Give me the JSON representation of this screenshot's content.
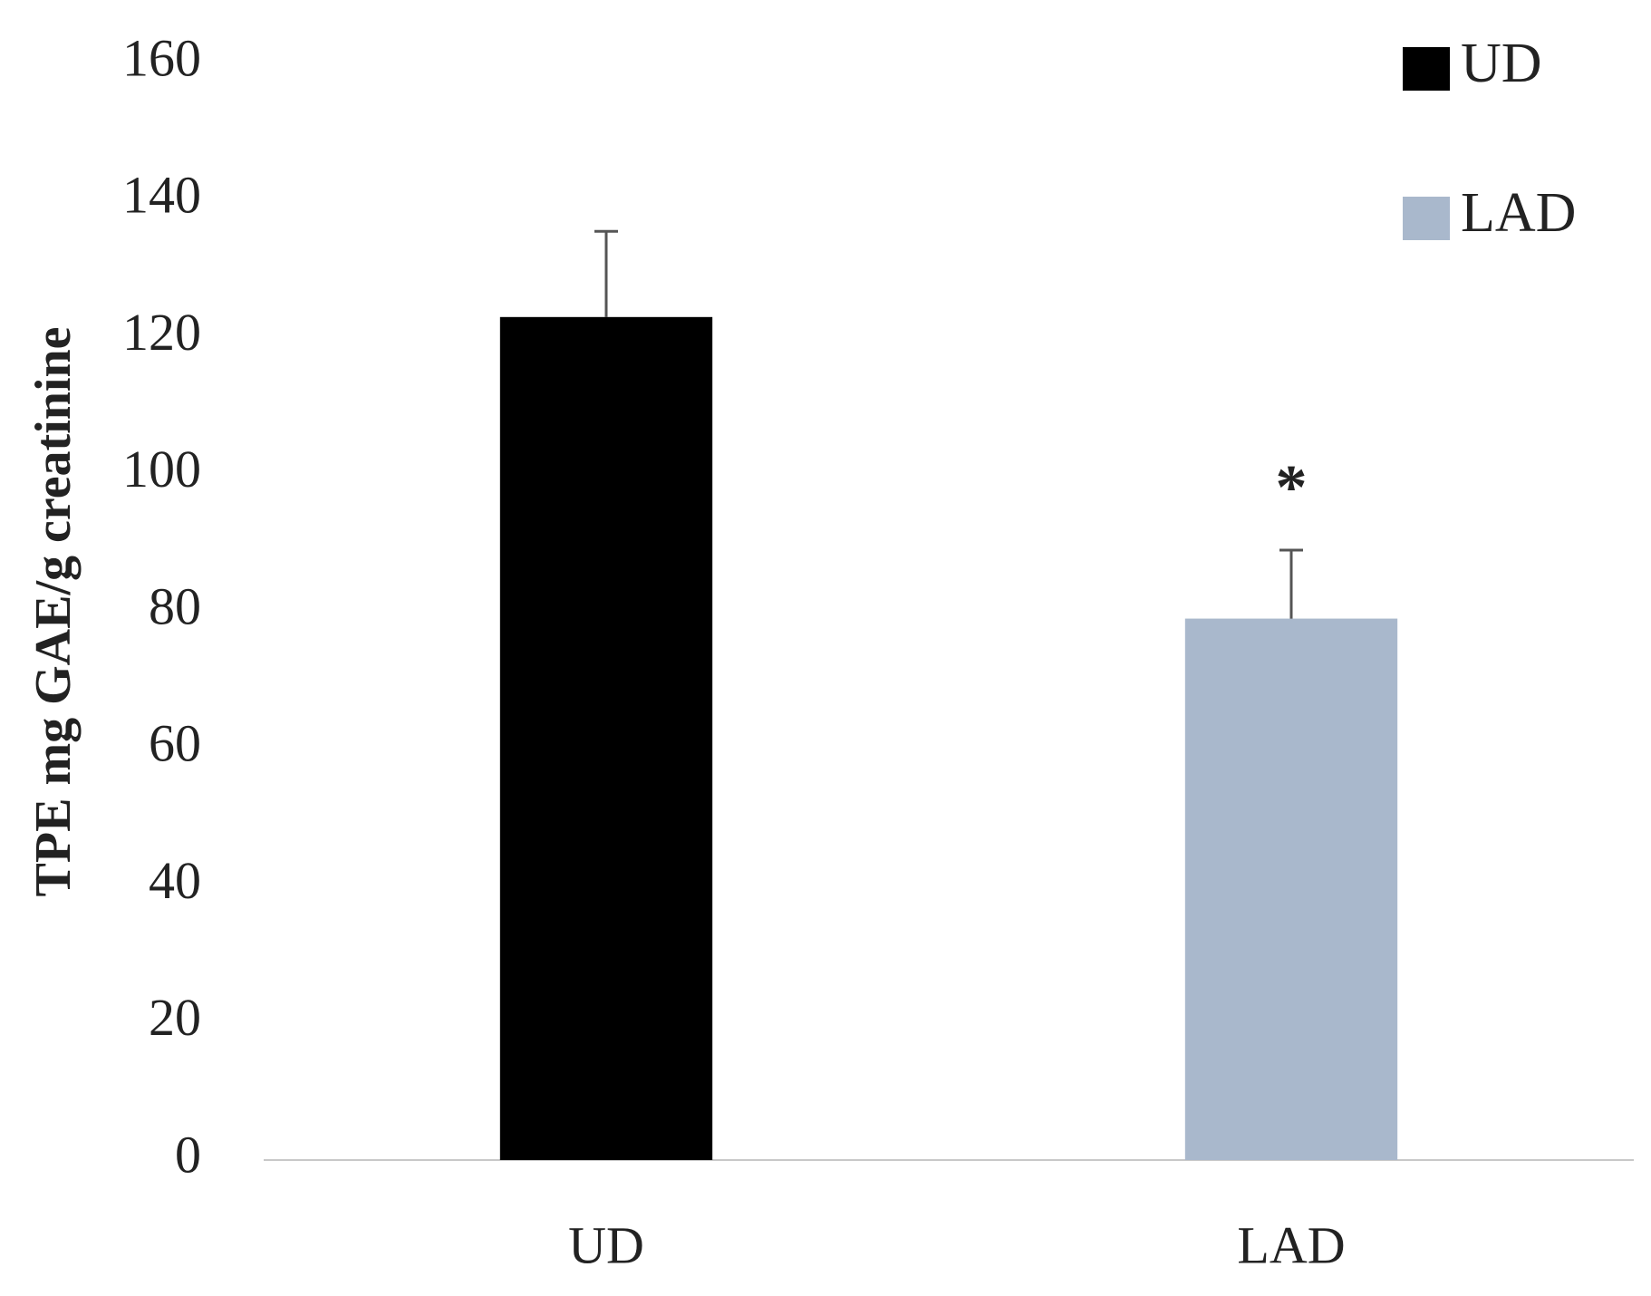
{
  "chart_data": {
    "type": "bar",
    "y_label": "TPE mg GAE/g creatinine",
    "categories": [
      "UD",
      "LAD"
    ],
    "series": [
      {
        "name": "UD",
        "color": "#000000",
        "values": [
          123,
          null
        ],
        "errors": [
          12.5,
          null
        ]
      },
      {
        "name": "LAD",
        "color": "#a9b8cc",
        "values": [
          null,
          79
        ],
        "errors": [
          null,
          10
        ]
      }
    ],
    "annotation": "*",
    "ylim": [
      0,
      160
    ],
    "yticks": [
      0,
      20,
      40,
      60,
      80,
      100,
      120,
      140,
      160
    ],
    "grid": false,
    "legend": "top-right"
  }
}
